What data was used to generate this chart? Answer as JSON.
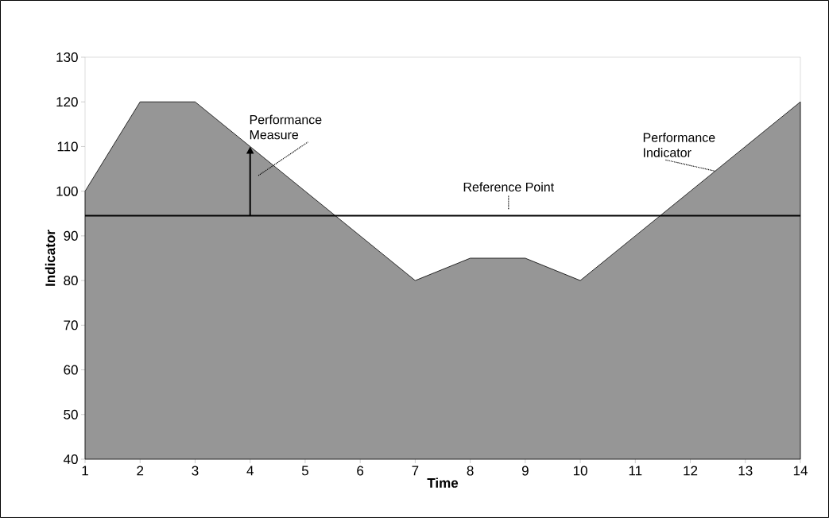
{
  "chart_data": {
    "type": "area",
    "xlabel": "Time",
    "ylabel": "Indicator",
    "x": [
      1,
      2,
      3,
      4,
      5,
      6,
      7,
      8,
      9,
      10,
      11,
      12,
      13,
      14
    ],
    "values": [
      100,
      120,
      120,
      110,
      100,
      90,
      80,
      85,
      85,
      80,
      90,
      100,
      110,
      120
    ],
    "color": "#969696",
    "xlim": [
      1,
      14
    ],
    "ylim": [
      40,
      130
    ],
    "xticks": [
      1,
      2,
      3,
      4,
      5,
      6,
      7,
      8,
      9,
      10,
      11,
      12,
      13,
      14
    ],
    "yticks": [
      40,
      50,
      60,
      70,
      80,
      90,
      100,
      110,
      120,
      130
    ],
    "ref_lines": [
      {
        "axis": "y",
        "value": 94.5,
        "label": "Reference Point",
        "color": "#000000"
      }
    ],
    "annotations": [
      {
        "text": "Performance Measure",
        "x": 4,
        "y": 110
      },
      {
        "text": "Performance Indicator",
        "x": 12.5,
        "y": 104
      }
    ],
    "grid": false
  }
}
